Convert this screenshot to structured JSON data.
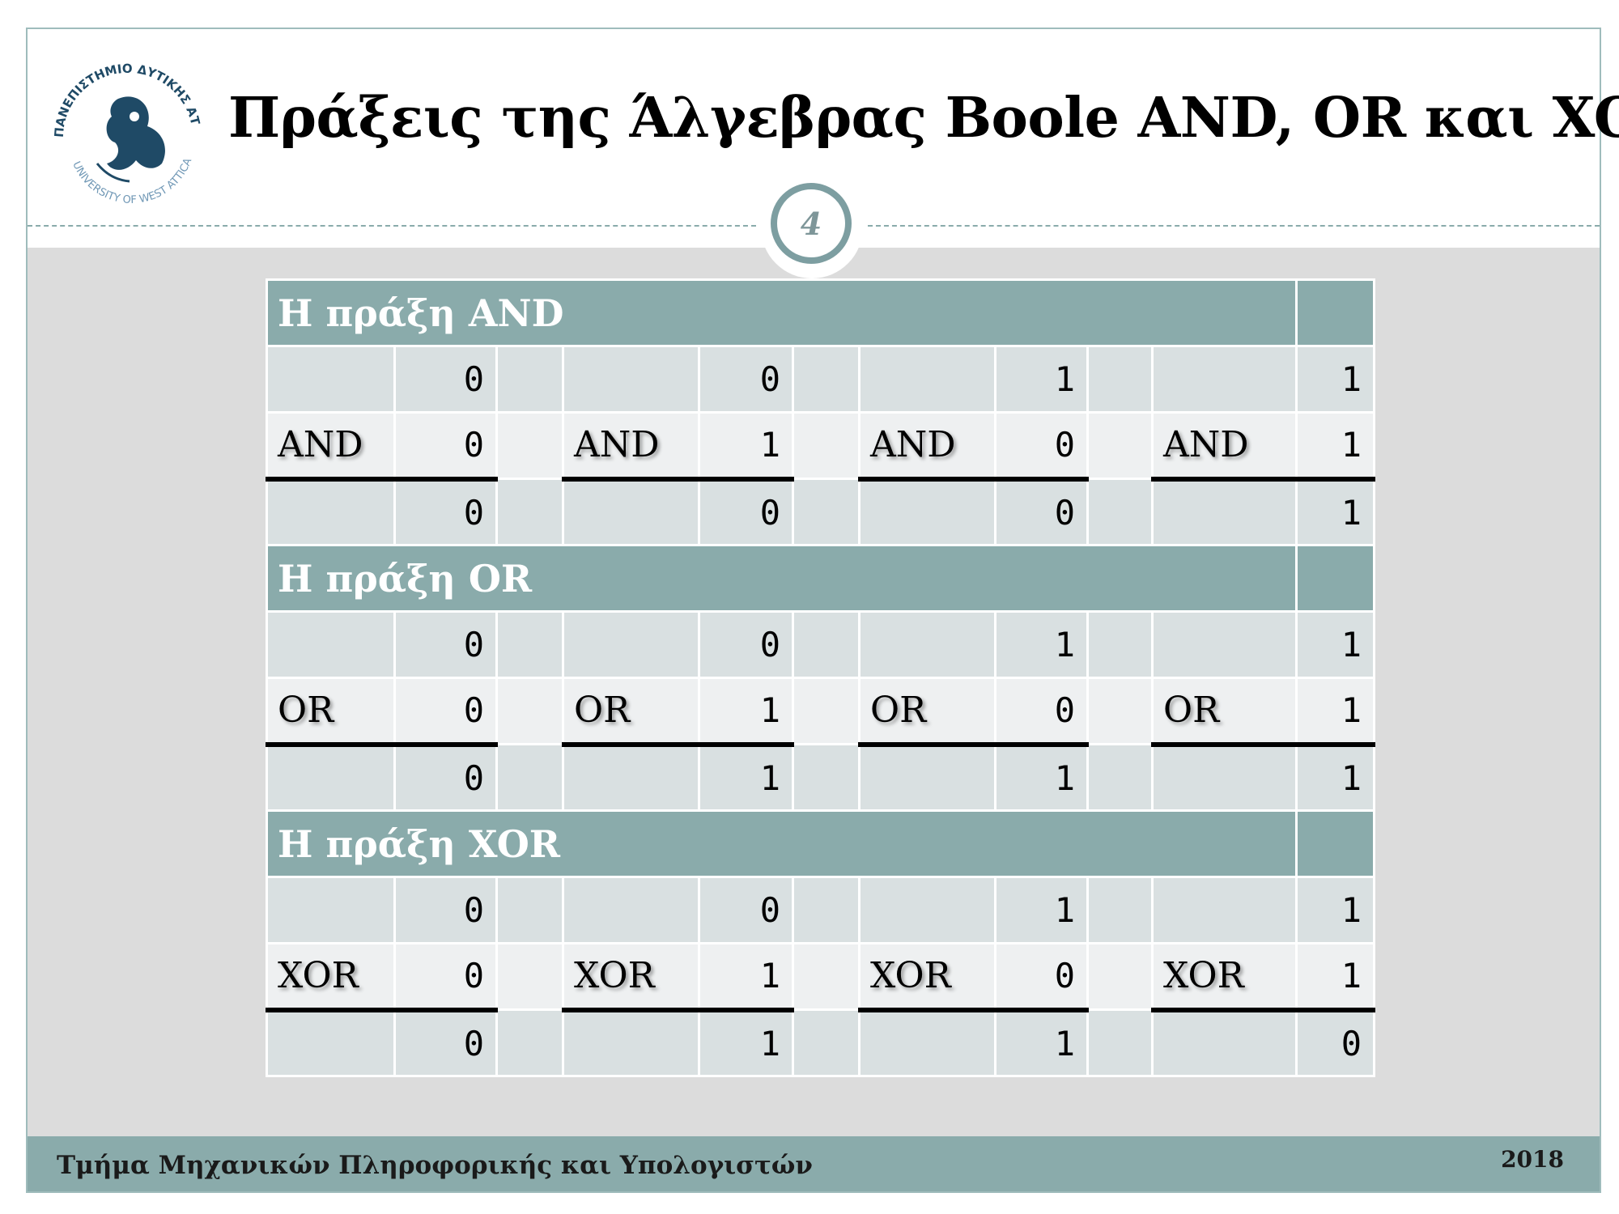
{
  "header": {
    "title": "Πράξεις της Άλγεβρας Boole AND, OR και XOR",
    "slide_number": "4",
    "logo_text": "ΠΑΝΕΠΙΣΤΗΜΙΟ ΔΥΤΙΚΗΣ ΑΤΤΙΚΗΣ · UNIVERSITY OF WEST ATTICA"
  },
  "tables": {
    "and": {
      "title": "Η πράξη AND",
      "op": "AND",
      "a": [
        "0",
        "0",
        "1",
        "1"
      ],
      "b": [
        "0",
        "1",
        "0",
        "1"
      ],
      "r": [
        "0",
        "0",
        "0",
        "1"
      ]
    },
    "or": {
      "title": "Η πράξη OR",
      "op": "OR",
      "a": [
        "0",
        "0",
        "1",
        "1"
      ],
      "b": [
        "0",
        "1",
        "0",
        "1"
      ],
      "r": [
        "0",
        "1",
        "1",
        "1"
      ]
    },
    "xor": {
      "title": "Η πράξη XOR",
      "op": "XOR",
      "a": [
        "0",
        "0",
        "1",
        "1"
      ],
      "b": [
        "0",
        "1",
        "0",
        "1"
      ],
      "r": [
        "0",
        "1",
        "1",
        "0"
      ]
    }
  },
  "footer": {
    "department": "Τμήμα Μηχανικών Πληροφορικής και Υπολογιστών",
    "year": "2018"
  },
  "colors": {
    "accent": "#8aabab",
    "row_dark": "#d9e0e1",
    "row_light": "#eef0f1"
  }
}
